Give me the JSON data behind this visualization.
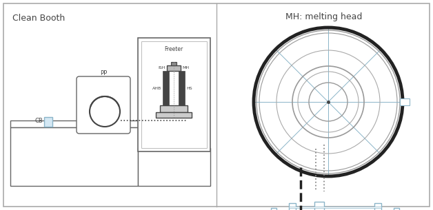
{
  "fig_width": 6.28,
  "fig_height": 3.05,
  "dpi": 100,
  "bg_color": "#ffffff",
  "line_color": "#666666",
  "blue_color": "#8ab4c8",
  "dark_color": "#444444",
  "black_color": "#222222",
  "left_panel_title": "Clean Booth",
  "right_panel_title": "MH: melting head",
  "label_PP": "PP",
  "label_CB": "CB",
  "label_Freezer": "Freeter",
  "label_ISH": "ISH",
  "label_MH": "MH",
  "label_AHB": "AHB",
  "label_HS": "HS"
}
